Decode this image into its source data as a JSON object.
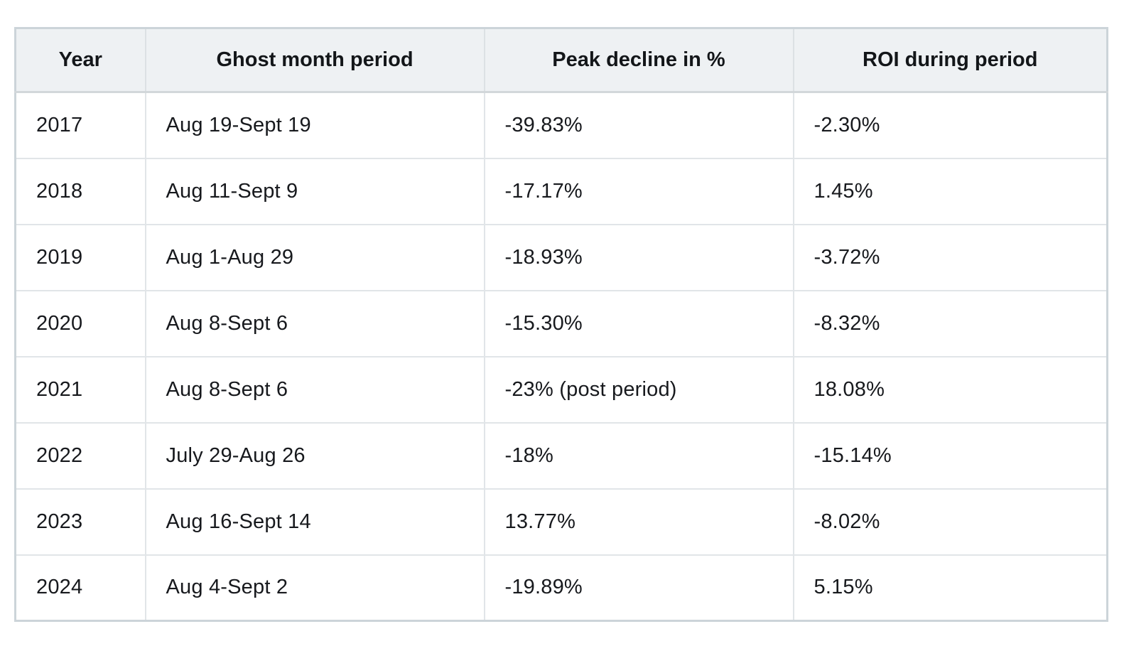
{
  "chart_data": {
    "type": "table",
    "columns": [
      "Year",
      "Ghost month period",
      "Peak decline in %",
      "ROI during period"
    ],
    "rows": [
      [
        "2017",
        "Aug 19-Sept 19",
        "-39.83%",
        "-2.30%"
      ],
      [
        "2018",
        "Aug 11-Sept 9",
        "-17.17%",
        "1.45%"
      ],
      [
        "2019",
        "Aug 1-Aug 29",
        "-18.93%",
        "-3.72%"
      ],
      [
        "2020",
        "Aug 8-Sept 6",
        "-15.30%",
        "-8.32%"
      ],
      [
        "2021",
        "Aug 8-Sept 6",
        "-23% (post period)",
        "18.08%"
      ],
      [
        "2022",
        "July 29-Aug 26",
        "-18%",
        "-15.14%"
      ],
      [
        "2023",
        "Aug 16-Sept 14",
        "13.77%",
        "-8.02%"
      ],
      [
        "2024",
        "Aug 4-Sept 2",
        "-19.89%",
        "5.15%"
      ]
    ],
    "layout": {
      "header_align": "center",
      "cell_align": "left",
      "grid": true
    }
  },
  "colors": {
    "header_bg": "#eef1f3",
    "row_bg": "#ffffff",
    "outer_border": "#ccd4d9",
    "inner_border": "#e1e5e8",
    "header_rule": "#d2d7da",
    "text": "#17191d"
  }
}
